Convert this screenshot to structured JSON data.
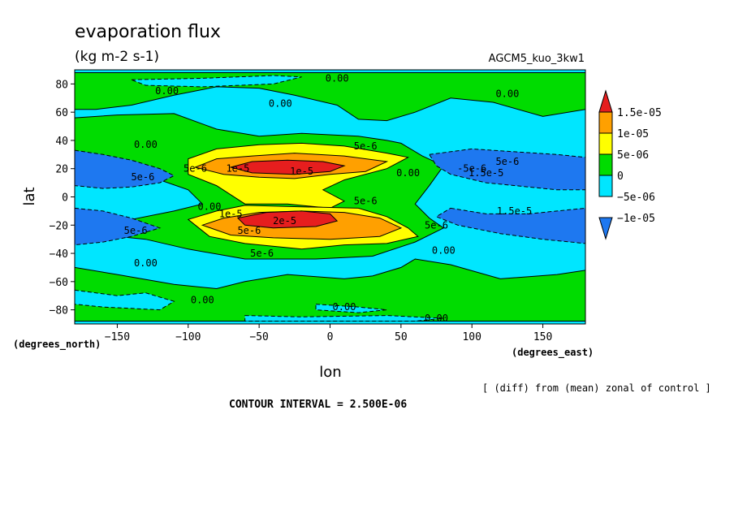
{
  "chart_data": {
    "type": "contour",
    "title": "evaporation flux",
    "subtitle": "(kg m-2 s-1)",
    "experiment": "AGCM5_kuo_3kw1",
    "xlabel": "lon",
    "ylabel": "lat",
    "x_units": "(degrees_east)",
    "y_units": "(degrees_north)",
    "xlim": [
      -180,
      180
    ],
    "ylim": [
      -90,
      90
    ],
    "x_ticks": [
      -150,
      -100,
      -50,
      0,
      50,
      100,
      150
    ],
    "y_ticks": [
      80,
      60,
      40,
      20,
      0,
      -20,
      -40,
      -60,
      -80
    ],
    "footnote": "[ (diff) from (mean) zonal of control ]",
    "contour_interval_text": "CONTOUR INTERVAL = 2.500E-06",
    "colorbar": {
      "colors": [
        "#1e78f0",
        "#00e6ff",
        "#00dc00",
        "#ffff00",
        "#ffa000",
        "#e61e1e"
      ],
      "labels": [
        "1.5e-05",
        "1e-05",
        "5e-06",
        "0",
        "-5e-06",
        "-1e-05"
      ]
    },
    "regions": [
      {
        "level": 2,
        "color": "#00dc00",
        "polygons": [
          [
            [
              -180,
              88
            ],
            [
              180,
              88
            ],
            [
              180,
              62
            ],
            [
              150,
              57
            ],
            [
              115,
              67
            ],
            [
              85,
              70
            ],
            [
              60,
              60
            ],
            [
              40,
              54
            ],
            [
              20,
              55
            ],
            [
              5,
              65
            ],
            [
              -25,
              72
            ],
            [
              -50,
              77
            ],
            [
              -80,
              78
            ],
            [
              -110,
              72
            ],
            [
              -140,
              65
            ],
            [
              -165,
              62
            ],
            [
              -180,
              62
            ]
          ],
          [
            [
              -180,
              56
            ],
            [
              -150,
              58
            ],
            [
              -110,
              59
            ],
            [
              -80,
              48
            ],
            [
              -50,
              43
            ],
            [
              -20,
              45
            ],
            [
              20,
              43
            ],
            [
              40,
              40
            ],
            [
              50,
              38
            ],
            [
              65,
              29
            ],
            [
              80,
              22
            ],
            [
              70,
              8
            ],
            [
              60,
              -5
            ],
            [
              70,
              -15
            ],
            [
              80,
              -22
            ],
            [
              60,
              -32
            ],
            [
              30,
              -42
            ],
            [
              -10,
              -44
            ],
            [
              -60,
              -44
            ],
            [
              -100,
              -37
            ],
            [
              -130,
              -30
            ],
            [
              -150,
              -28
            ],
            [
              -140,
              -16
            ],
            [
              -110,
              -10
            ],
            [
              -90,
              -5
            ],
            [
              -100,
              5
            ],
            [
              -120,
              12
            ],
            [
              -150,
              20
            ],
            [
              -165,
              25
            ],
            [
              -180,
              32
            ]
          ],
          [
            [
              -180,
              -50
            ],
            [
              -150,
              -55
            ],
            [
              -110,
              -62
            ],
            [
              -80,
              -65
            ],
            [
              -60,
              -60
            ],
            [
              -30,
              -55
            ],
            [
              10,
              -58
            ],
            [
              30,
              -56
            ],
            [
              50,
              -50
            ],
            [
              60,
              -44
            ],
            [
              85,
              -48
            ],
            [
              120,
              -58
            ],
            [
              160,
              -55
            ],
            [
              180,
              -52
            ],
            [
              180,
              -88
            ],
            [
              -180,
              -88
            ]
          ]
        ]
      },
      {
        "level": 0,
        "color": "#00e6ff",
        "polygons": [
          [
            [
              -140,
              83
            ],
            [
              -90,
              84
            ],
            [
              -40,
              86
            ],
            [
              -20,
              85
            ],
            [
              -40,
              80
            ],
            [
              -90,
              78
            ],
            [
              -130,
              79
            ]
          ],
          [
            [
              -180,
              -66
            ],
            [
              -150,
              -70
            ],
            [
              -130,
              -68
            ],
            [
              -110,
              -74
            ],
            [
              -120,
              -80
            ],
            [
              -160,
              -78
            ],
            [
              -180,
              -76
            ]
          ],
          [
            [
              -60,
              -84
            ],
            [
              -20,
              -85
            ],
            [
              40,
              -84
            ],
            [
              80,
              -86
            ],
            [
              60,
              -88
            ],
            [
              -60,
              -88
            ]
          ],
          [
            [
              -10,
              -76
            ],
            [
              20,
              -78
            ],
            [
              40,
              -80
            ],
            [
              20,
              -82
            ],
            [
              -10,
              -80
            ]
          ]
        ]
      },
      {
        "level": 3,
        "color": "#ffff00",
        "polygons": [
          [
            [
              -100,
              27
            ],
            [
              -80,
              34
            ],
            [
              -50,
              37
            ],
            [
              -20,
              38
            ],
            [
              10,
              36
            ],
            [
              40,
              31
            ],
            [
              55,
              28
            ],
            [
              40,
              20
            ],
            [
              10,
              12
            ],
            [
              -5,
              5
            ],
            [
              10,
              -3
            ],
            [
              0,
              -8
            ],
            [
              -30,
              -5
            ],
            [
              -60,
              -5
            ],
            [
              -80,
              8
            ],
            [
              -100,
              16
            ]
          ],
          [
            [
              -100,
              -16
            ],
            [
              -80,
              -10
            ],
            [
              -60,
              -6
            ],
            [
              -20,
              -7
            ],
            [
              20,
              -8
            ],
            [
              40,
              -14
            ],
            [
              55,
              -22
            ],
            [
              62,
              -28
            ],
            [
              40,
              -33
            ],
            [
              10,
              -34
            ],
            [
              -20,
              -37
            ],
            [
              -60,
              -33
            ],
            [
              -85,
              -28
            ]
          ]
        ]
      },
      {
        "level": 4,
        "color": "#ffa000",
        "polygons": [
          [
            [
              -95,
              21
            ],
            [
              -80,
              27
            ],
            [
              -55,
              29
            ],
            [
              -25,
              31
            ],
            [
              10,
              29
            ],
            [
              40,
              25
            ],
            [
              25,
              18
            ],
            [
              0,
              16
            ],
            [
              -25,
              13
            ],
            [
              -50,
              14
            ],
            [
              -75,
              16
            ]
          ],
          [
            [
              -90,
              -20
            ],
            [
              -75,
              -15
            ],
            [
              -50,
              -11
            ],
            [
              -20,
              -10
            ],
            [
              10,
              -11
            ],
            [
              35,
              -15
            ],
            [
              50,
              -22
            ],
            [
              35,
              -28
            ],
            [
              0,
              -30
            ],
            [
              -40,
              -29
            ],
            [
              -70,
              -27
            ]
          ]
        ]
      },
      {
        "level": 5,
        "color": "#e61e1e",
        "polygons": [
          [
            [
              -70,
              21
            ],
            [
              -55,
              25
            ],
            [
              -30,
              26
            ],
            [
              -5,
              25
            ],
            [
              10,
              22
            ],
            [
              0,
              18
            ],
            [
              -25,
              16
            ],
            [
              -55,
              17
            ]
          ],
          [
            [
              -65,
              -15
            ],
            [
              -45,
              -11
            ],
            [
              -20,
              -10
            ],
            [
              0,
              -12
            ],
            [
              5,
              -17
            ],
            [
              -10,
              -21
            ],
            [
              -40,
              -22
            ],
            [
              -60,
              -20
            ]
          ]
        ]
      },
      {
        "level": 1,
        "color": "#1e78f0",
        "polygons": [
          [
            [
              -180,
              33
            ],
            [
              -160,
              30
            ],
            [
              -140,
              26
            ],
            [
              -120,
              20
            ],
            [
              -110,
              15
            ],
            [
              -120,
              10
            ],
            [
              -140,
              7
            ],
            [
              -160,
              6
            ],
            [
              -180,
              8
            ]
          ],
          [
            [
              -180,
              -8
            ],
            [
              -160,
              -10
            ],
            [
              -140,
              -15
            ],
            [
              -120,
              -22
            ],
            [
              -140,
              -28
            ],
            [
              -160,
              -32
            ],
            [
              -180,
              -34
            ]
          ],
          [
            [
              70,
              30
            ],
            [
              100,
              34
            ],
            [
              130,
              32
            ],
            [
              160,
              30
            ],
            [
              180,
              28
            ],
            [
              180,
              5
            ],
            [
              160,
              5
            ],
            [
              140,
              7
            ],
            [
              110,
              10
            ],
            [
              85,
              16
            ],
            [
              75,
              22
            ]
          ],
          [
            [
              85,
              -8
            ],
            [
              110,
              -12
            ],
            [
              140,
              -12
            ],
            [
              170,
              -9
            ],
            [
              180,
              -8
            ],
            [
              180,
              -33
            ],
            [
              150,
              -30
            ],
            [
              120,
              -26
            ],
            [
              90,
              -20
            ],
            [
              75,
              -14
            ]
          ]
        ]
      }
    ],
    "contour_labels": [
      {
        "x": 5,
        "y": 84,
        "text": "0.00"
      },
      {
        "x": -115,
        "y": 75,
        "text": "0.00"
      },
      {
        "x": -35,
        "y": 66,
        "text": "0.00"
      },
      {
        "x": 125,
        "y": 73,
        "text": "0.00"
      },
      {
        "x": -130,
        "y": 37,
        "text": "0.00"
      },
      {
        "x": 25,
        "y": 36,
        "text": "5e-6"
      },
      {
        "x": -132,
        "y": 14,
        "text": "5e-6"
      },
      {
        "x": -95,
        "y": 20,
        "text": "5e-6"
      },
      {
        "x": -65,
        "y": 20,
        "text": "1e-5"
      },
      {
        "x": -20,
        "y": 18,
        "text": "1e-5"
      },
      {
        "x": 55,
        "y": 17,
        "text": "0.00"
      },
      {
        "x": 100,
        "y": 20,
        "text": "-5e-6"
      },
      {
        "x": 125,
        "y": 25,
        "text": "5e-6"
      },
      {
        "x": 110,
        "y": 17,
        "text": "1.5e-5"
      },
      {
        "x": 25,
        "y": -3,
        "text": "5e-6"
      },
      {
        "x": -85,
        "y": -7,
        "text": "0.00"
      },
      {
        "x": -70,
        "y": -12,
        "text": "1e-5"
      },
      {
        "x": -32,
        "y": -17,
        "text": "2e-5"
      },
      {
        "x": -57,
        "y": -24,
        "text": "5e-6"
      },
      {
        "x": -137,
        "y": -24,
        "text": "5e-6"
      },
      {
        "x": -48,
        "y": -40,
        "text": "5e-6"
      },
      {
        "x": -130,
        "y": -47,
        "text": "0.00"
      },
      {
        "x": 130,
        "y": -10,
        "text": "1.5e-5"
      },
      {
        "x": 75,
        "y": -20,
        "text": "5e-6"
      },
      {
        "x": 80,
        "y": -38,
        "text": "0.00"
      },
      {
        "x": -90,
        "y": -73,
        "text": "0.00"
      },
      {
        "x": 10,
        "y": -78,
        "text": "0.00"
      },
      {
        "x": 75,
        "y": -86,
        "text": "0.00"
      }
    ]
  }
}
